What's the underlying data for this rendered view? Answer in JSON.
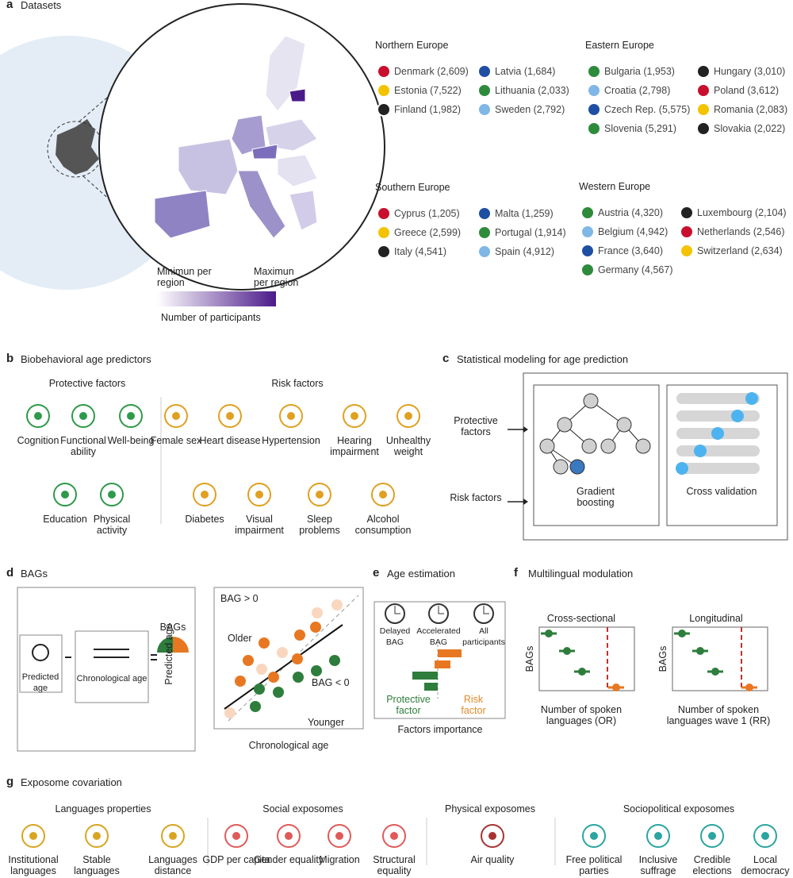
{
  "panel_a": {
    "label": "a",
    "title": "Datasets",
    "regions": [
      {
        "name": "Northern Europe",
        "countries": [
          "Denmark (2,609)",
          "Latvia (1,684)",
          "Estonia (7,522)",
          "Lithuania (2,033)",
          "Finland (1,982)",
          "Sweden (2,792)"
        ]
      },
      {
        "name": "Eastern Europe",
        "countries": [
          "Bulgaria (1,953)",
          "Hungary (3,010)",
          "Croatia (2,798)",
          "Poland (3,612)",
          "Czech Rep. (5,575)",
          "Romania (2,083)",
          "Slovenia (5,291)",
          "Slovakia (2,022)"
        ]
      },
      {
        "name": "Southern Europe",
        "countries": [
          "Cyprus (1,205)",
          "Malta (1,259)",
          "Greece (2,599)",
          "Portugal (1,914)",
          "Italy (4,541)",
          "Spain (4,912)"
        ]
      },
      {
        "name": "Western Europe",
        "countries": [
          "Austria (4,320)",
          "Luxembourg (2,104)",
          "Belgium (4,942)",
          "Netherlands (2,546)",
          "France (3,640)",
          "Switzerland (2,634)",
          "Germany (4,567)"
        ]
      }
    ],
    "legend": {
      "min": "Minimun per region",
      "max": "Maximun per region",
      "caption": "Number of participants"
    }
  },
  "panel_b": {
    "label": "b",
    "title": "Biobehavioral age predictors",
    "protective_title": "Protective factors",
    "risk_title": "Risk factors",
    "protective": [
      "Cognition",
      "Functional ability",
      "Well-being",
      "Education",
      "Physical activity"
    ],
    "risk": [
      "Female sex",
      "Heart disease",
      "Hypertension",
      "Hearing impairment",
      "Unhealthy weight",
      "Diabetes",
      "Visual impairment",
      "Sleep problems",
      "Alcohol consumption"
    ]
  },
  "panel_c": {
    "label": "c",
    "title": "Statistical modeling for age prediction",
    "inputs": [
      "Protective factors",
      "Risk factors"
    ],
    "models": [
      "Gradient boosting",
      "Cross validation"
    ]
  },
  "panel_d": {
    "label": "d",
    "title": "BAGs",
    "predicted": "Predicted age",
    "chronological": "Chronological age",
    "bags": "BAGs",
    "plot": {
      "y_label": "Predicted age",
      "x_label": "Chronological age",
      "positive": "BAG > 0",
      "older": "Older",
      "negative": "BAG < 0",
      "younger": "Younger"
    }
  },
  "panel_e": {
    "label": "e",
    "title": "Age estimation",
    "clocks": [
      "Delayed BAG",
      "Accelerated BAG",
      "All participants"
    ],
    "protective": "Protective factor",
    "risk": "Risk factor",
    "x_label": "Factors importance"
  },
  "panel_f": {
    "label": "f",
    "title": "Multilingual modulation",
    "plots": [
      {
        "title": "Cross-sectional",
        "y_label": "BAGs",
        "x_label": "Number of spoken languages (OR)"
      },
      {
        "title": "Longitudinal",
        "y_label": "BAGs",
        "x_label": "Number of spoken languages wave 1 (RR)"
      }
    ]
  },
  "panel_g": {
    "label": "g",
    "title": "Exposome covariation",
    "groups": [
      {
        "title": "Languages properties",
        "items": [
          "Institutional languages",
          "Stable languages",
          "Languages distance"
        ]
      },
      {
        "title": "Social exposomes",
        "items": [
          "GDP per capita",
          "Gender equality",
          "Migration",
          "Structural equality"
        ]
      },
      {
        "title": "Physical exposomes",
        "items": [
          "Air quality"
        ]
      },
      {
        "title": "Sociopolitical exposomes",
        "items": [
          "Free political parties",
          "Inclusive suffrage",
          "Credible elections",
          "Local democracy"
        ]
      }
    ]
  }
}
